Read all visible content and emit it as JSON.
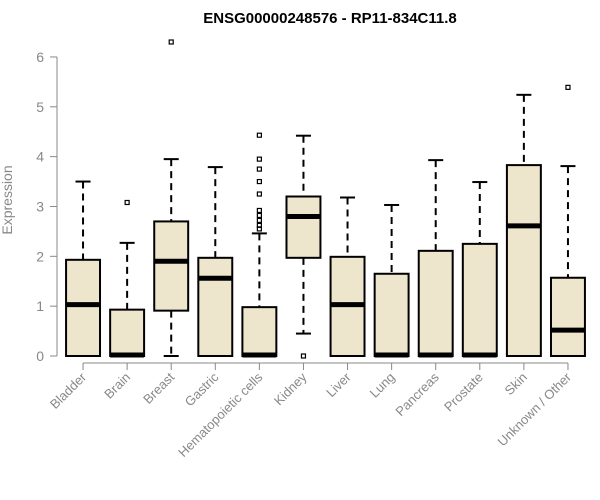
{
  "chart_data": {
    "type": "boxplot",
    "title": "ENSG00000248576 - RP11-834C11.8",
    "xlabel": "",
    "ylabel": "Expression",
    "ylim": [
      0,
      6.3
    ],
    "yticks": [
      0,
      1,
      2,
      3,
      4,
      5,
      6
    ],
    "grid": false,
    "box_fill": "#EEE6CC",
    "box_stroke": "#000000",
    "categories": [
      "Bladder",
      "Brain",
      "Breast",
      "Gastric",
      "Hematopoietic cells",
      "Kidney",
      "Liver",
      "Lung",
      "Pancreas",
      "Prostate",
      "Skin",
      "Unknown / Other"
    ],
    "boxes": [
      {
        "category": "Bladder",
        "whisker_low": 0,
        "q1": 0,
        "median": 1.03,
        "q3": 1.93,
        "whisker_high": 3.5,
        "outliers": []
      },
      {
        "category": "Brain",
        "whisker_low": 0,
        "q1": 0,
        "median": 0.02,
        "q3": 0.93,
        "whisker_high": 2.27,
        "outliers": [
          3.08
        ]
      },
      {
        "category": "Breast",
        "whisker_low": 0,
        "q1": 0.91,
        "median": 1.9,
        "q3": 2.7,
        "whisker_high": 3.95,
        "outliers": [
          6.3
        ]
      },
      {
        "category": "Gastric",
        "whisker_low": 0,
        "q1": 0,
        "median": 1.56,
        "q3": 1.97,
        "whisker_high": 3.79,
        "outliers": []
      },
      {
        "category": "Hematopoietic cells",
        "whisker_low": 0,
        "q1": 0,
        "median": 0.02,
        "q3": 0.98,
        "whisker_high": 2.46,
        "outliers": [
          2.55,
          2.62,
          2.72,
          2.82,
          2.92,
          3.25,
          3.5,
          3.75,
          3.95,
          4.43
        ]
      },
      {
        "category": "Kidney",
        "whisker_low": 0.45,
        "q1": 1.97,
        "median": 2.8,
        "q3": 3.2,
        "whisker_high": 4.42,
        "outliers": [
          0
        ]
      },
      {
        "category": "Liver",
        "whisker_low": 0,
        "q1": 0,
        "median": 1.03,
        "q3": 1.99,
        "whisker_high": 3.18,
        "outliers": []
      },
      {
        "category": "Lung",
        "whisker_low": 0,
        "q1": 0,
        "median": 0.02,
        "q3": 1.65,
        "whisker_high": 3.03,
        "outliers": []
      },
      {
        "category": "Pancreas",
        "whisker_low": 0,
        "q1": 0,
        "median": 0.02,
        "q3": 2.11,
        "whisker_high": 3.93,
        "outliers": []
      },
      {
        "category": "Prostate",
        "whisker_low": 0,
        "q1": 0,
        "median": 0.02,
        "q3": 2.25,
        "whisker_high": 3.49,
        "outliers": []
      },
      {
        "category": "Skin",
        "whisker_low": 0,
        "q1": 0,
        "median": 2.61,
        "q3": 3.83,
        "whisker_high": 5.24,
        "outliers": []
      },
      {
        "category": "Unknown / Other",
        "whisker_low": 0,
        "q1": 0,
        "median": 0.52,
        "q3": 1.57,
        "whisker_high": 3.81,
        "outliers": [
          5.39
        ]
      }
    ]
  }
}
